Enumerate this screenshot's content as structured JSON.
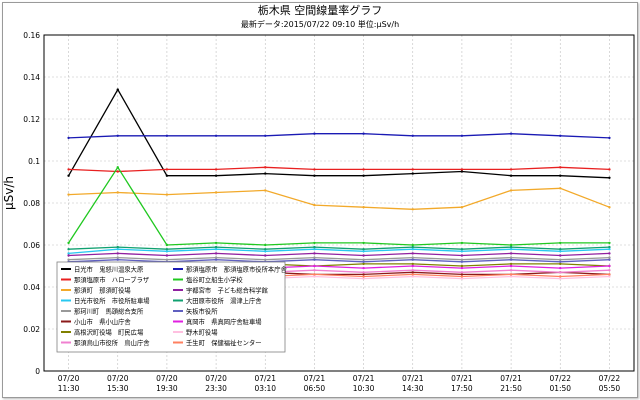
{
  "chart_data": {
    "type": "line",
    "title": "栃木県 空間線量率グラフ",
    "subtitle": "最新データ:2015/07/22 09:10 単位:μSv/h",
    "ylabel": "μSv/h",
    "xlabel": "",
    "ylim": [
      0,
      0.16
    ],
    "yticks": [
      "0",
      "0.02",
      "0.04",
      "0.06",
      "0.08",
      "0.1",
      "0.12",
      "0.14",
      "0.16"
    ],
    "grid": true,
    "legend_position": "bottom-left",
    "x": [
      "07/20 11:30",
      "07/20 15:30",
      "07/20 19:30",
      "07/20 23:30",
      "07/21 03:10",
      "07/21 06:50",
      "07/21 10:30",
      "07/21 14:30",
      "07/21 17:50",
      "07/21 21:50",
      "07/22 01:50",
      "07/22 05:50"
    ],
    "series": [
      {
        "name": "日光市　鬼怒川温泉大原",
        "color": "#000000",
        "values": [
          0.093,
          0.134,
          0.093,
          0.093,
          0.094,
          0.093,
          0.093,
          0.094,
          0.095,
          0.093,
          0.093,
          0.092
        ]
      },
      {
        "name": "那須塩原市　ハローブラザ",
        "color": "#e82020",
        "values": [
          0.096,
          0.095,
          0.096,
          0.096,
          0.097,
          0.096,
          0.096,
          0.096,
          0.096,
          0.096,
          0.097,
          0.096
        ]
      },
      {
        "name": "那須町　那須町役場",
        "color": "#f2a92a",
        "values": [
          0.084,
          0.085,
          0.084,
          0.085,
          0.086,
          0.079,
          0.078,
          0.077,
          0.078,
          0.086,
          0.087,
          0.078
        ]
      },
      {
        "name": "日光市役所　市役所駐車場",
        "color": "#28c8f0",
        "values": [
          0.056,
          0.058,
          0.057,
          0.058,
          0.057,
          0.058,
          0.057,
          0.058,
          0.057,
          0.058,
          0.057,
          0.058
        ]
      },
      {
        "name": "那珂川町　馬頭総合支所",
        "color": "#999999",
        "values": [
          0.053,
          0.054,
          0.053,
          0.054,
          0.053,
          0.054,
          0.053,
          0.054,
          0.053,
          0.054,
          0.053,
          0.054
        ]
      },
      {
        "name": "小山市　県小山庁舎",
        "color": "#8b1a1a",
        "values": [
          0.046,
          0.047,
          0.046,
          0.046,
          0.047,
          0.046,
          0.046,
          0.047,
          0.046,
          0.046,
          0.047,
          0.046
        ]
      },
      {
        "name": "高根沢町役場　町民広場",
        "color": "#808000",
        "values": [
          0.051,
          0.051,
          0.05,
          0.051,
          0.051,
          0.05,
          0.051,
          0.051,
          0.05,
          0.051,
          0.051,
          0.05
        ]
      },
      {
        "name": "那須烏山市役所　烏山庁舎",
        "color": "#f080d0",
        "values": [
          0.047,
          0.048,
          0.047,
          0.048,
          0.047,
          0.048,
          0.047,
          0.048,
          0.047,
          0.048,
          0.047,
          0.048
        ]
      },
      {
        "name": "那須塩原市　那須塩原市役所本庁舎",
        "color": "#1a1ab4",
        "values": [
          0.111,
          0.112,
          0.112,
          0.112,
          0.112,
          0.113,
          0.113,
          0.112,
          0.112,
          0.113,
          0.112,
          0.111
        ]
      },
      {
        "name": "塩谷町立船生小学校",
        "color": "#20c820",
        "values": [
          0.061,
          0.097,
          0.06,
          0.061,
          0.06,
          0.061,
          0.061,
          0.06,
          0.061,
          0.06,
          0.061,
          0.061
        ]
      },
      {
        "name": "宇都宮市　子ども総合科学館",
        "color": "#9020a0",
        "values": [
          0.055,
          0.056,
          0.055,
          0.056,
          0.055,
          0.056,
          0.055,
          0.056,
          0.055,
          0.056,
          0.055,
          0.056
        ]
      },
      {
        "name": "大田原市役所　湯津上庁舎",
        "color": "#10a070",
        "values": [
          0.058,
          0.059,
          0.058,
          0.059,
          0.058,
          0.059,
          0.058,
          0.059,
          0.058,
          0.059,
          0.058,
          0.059
        ]
      },
      {
        "name": "矢板市役所",
        "color": "#6060c0",
        "values": [
          0.052,
          0.053,
          0.052,
          0.053,
          0.052,
          0.053,
          0.052,
          0.053,
          0.052,
          0.053,
          0.052,
          0.053
        ]
      },
      {
        "name": "真岡市　県真岡庁舎駐車場",
        "color": "#e020e0",
        "values": [
          0.049,
          0.05,
          0.049,
          0.05,
          0.049,
          0.05,
          0.049,
          0.05,
          0.049,
          0.05,
          0.049,
          0.05
        ]
      },
      {
        "name": "野木町役場",
        "color": "#ffc0e0",
        "values": [
          0.044,
          0.045,
          0.044,
          0.045,
          0.044,
          0.045,
          0.044,
          0.045,
          0.044,
          0.045,
          0.044,
          0.045
        ]
      },
      {
        "name": "壬生町　保健福祉センター",
        "color": "#ff8060",
        "values": [
          0.045,
          0.046,
          0.045,
          0.046,
          0.045,
          0.046,
          0.045,
          0.046,
          0.045,
          0.046,
          0.045,
          0.046
        ]
      }
    ]
  }
}
